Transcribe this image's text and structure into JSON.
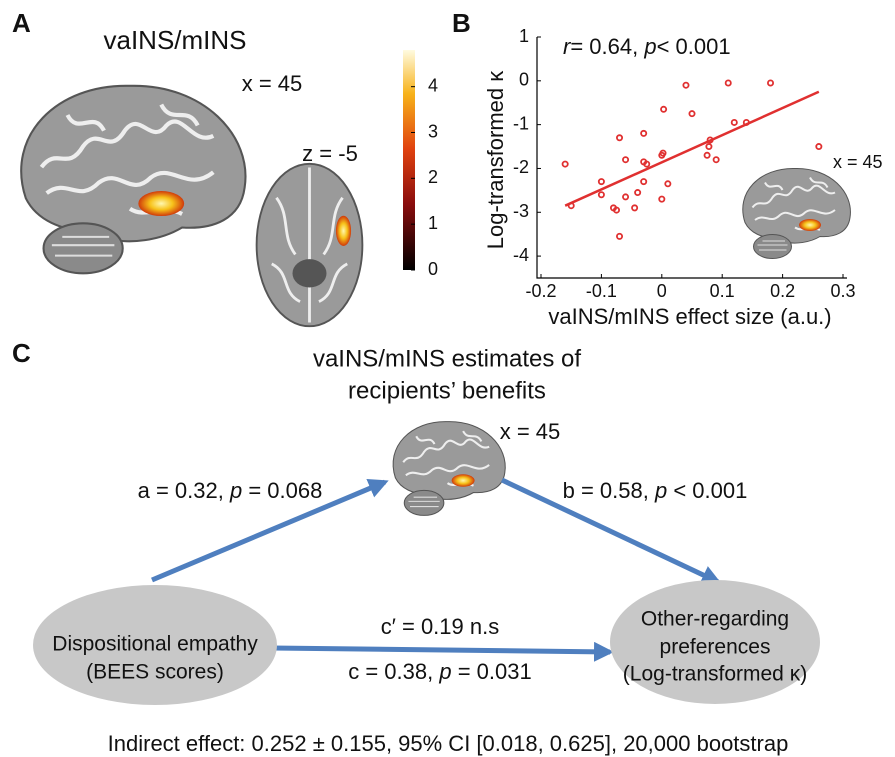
{
  "panel_a": {
    "label": "A",
    "title": "vaINS/mINS",
    "sagittal_label": "x = 45",
    "axial_label": "z = -5",
    "colorbar": {
      "lim": [
        0,
        4.8
      ],
      "ticks": [
        0,
        1,
        2,
        3,
        4
      ]
    }
  },
  "chart_data": {
    "type": "scatter",
    "panel_label": "B",
    "annotation": [
      "r",
      "= 0.64, ",
      "p",
      "< 0.001"
    ],
    "xlabel": "vaINS/mINS effect size (a.u.)",
    "ylabel": "Log-transformed κ",
    "inset_label": "x = 45",
    "x": [
      -0.16,
      -0.15,
      -0.1,
      -0.1,
      -0.07,
      -0.06,
      -0.08,
      -0.075,
      -0.07,
      -0.06,
      -0.04,
      -0.03,
      -0.025,
      -0.03,
      -0.03,
      -0.045,
      0.0,
      0.002,
      0.003,
      0.0,
      0.01,
      0.04,
      0.05,
      0.08,
      0.078,
      0.075,
      0.09,
      0.11,
      0.12,
      0.14,
      0.18,
      0.26
    ],
    "values": [
      -1.9,
      -2.85,
      -2.3,
      -2.6,
      -1.3,
      -1.8,
      -2.9,
      -2.95,
      -3.55,
      -2.65,
      -2.55,
      -1.85,
      -1.9,
      -2.3,
      -1.2,
      -2.9,
      -1.7,
      -1.65,
      -0.65,
      -2.7,
      -2.35,
      -0.1,
      -0.75,
      -1.35,
      -1.5,
      -1.7,
      -1.8,
      -0.05,
      -0.95,
      -0.95,
      -0.05,
      -1.5
    ],
    "color": "#e03030",
    "fit": {
      "x": [
        -0.16,
        0.26
      ],
      "y": [
        -2.85,
        -0.25
      ]
    },
    "xlim": [
      -0.2,
      0.3
    ],
    "xticks": [
      -0.2,
      -0.1,
      0,
      0.1,
      0.2,
      0.3
    ],
    "ylim": [
      -4.5,
      1
    ],
    "yticks": [
      -4,
      -3,
      -2,
      -1,
      0,
      1
    ]
  },
  "panel_c": {
    "label": "C",
    "mediator_title": [
      "vaINS/mINS estimates of",
      "recipients’ benefits"
    ],
    "mediator_slice": "x = 45",
    "path_a": [
      "a = 0.32, ",
      "p",
      " = 0.068"
    ],
    "path_b": [
      "b = 0.58, ",
      "p",
      " < 0.001"
    ],
    "path_c_prime": "c′ = 0.19 n.s",
    "path_c": [
      "c = 0.38, ",
      "p",
      " = 0.031"
    ],
    "left_node": [
      "Dispositional empathy",
      "(BEES scores)"
    ],
    "right_node": [
      "Other-regarding",
      "preferences",
      "(Log-transformed κ)"
    ],
    "footer": "Indirect effect: 0.252 ± 0.155, 95% CI [0.018, 0.625], 20,000 bootstrap"
  }
}
